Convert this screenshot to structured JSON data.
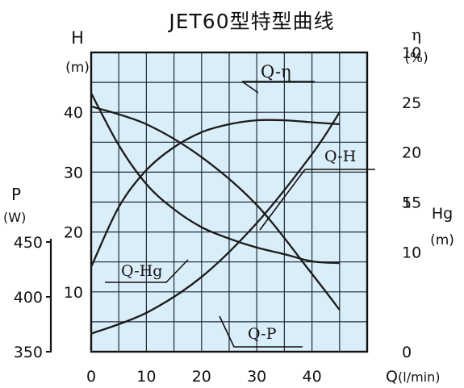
{
  "chart_data": {
    "type": "line",
    "title": "JET60型特型曲线",
    "x": {
      "label": "Q",
      "unit": "(l/min)",
      "range": [
        0,
        50
      ],
      "ticks": [
        "0",
        "10",
        "20",
        "30",
        "40"
      ]
    },
    "axes": {
      "H": {
        "label": "H",
        "unit": "(m)",
        "range": [
          0,
          50
        ],
        "ticks": [
          "10",
          "20",
          "30",
          "40"
        ]
      },
      "eta": {
        "label": "η",
        "unit": "(%)",
        "range": [
          0,
          30
        ],
        "ticks": [
          "10",
          "15",
          "20",
          "25"
        ]
      },
      "Hg": {
        "label": "Hg",
        "unit": "(m)",
        "range": [
          0,
          10
        ],
        "ticks": [
          "0",
          "5",
          "10"
        ]
      },
      "P": {
        "label": "P",
        "unit": "(W)",
        "range": [
          350,
          450
        ],
        "ticks": [
          "350",
          "400",
          "450"
        ]
      }
    },
    "grid": true,
    "series": [
      {
        "name": "Q-η",
        "axis": "eta",
        "color": "#1a1a1a",
        "x": [
          0,
          5,
          10,
          15,
          20,
          25,
          30,
          35,
          40,
          45
        ],
        "y": [
          8.5,
          14.5,
          18.2,
          20.5,
          22.0,
          22.8,
          23.2,
          23.2,
          23.0,
          22.8
        ]
      },
      {
        "name": "Q-H",
        "axis": "H",
        "color": "#1a1a1a",
        "x": [
          0,
          5,
          10,
          15,
          20,
          25,
          30,
          35,
          40,
          45
        ],
        "y": [
          43.2,
          34.5,
          28.0,
          23.8,
          20.8,
          18.9,
          17.4,
          16.3,
          15.1,
          14.8
        ]
      },
      {
        "name": "Q-Hg",
        "axis": "Hg",
        "color": "#1a1a1a",
        "x": [
          0,
          10,
          20,
          30,
          40,
          45
        ],
        "y": [
          8.2,
          7.6,
          6.5,
          4.9,
          2.6,
          1.4
        ]
      },
      {
        "name": "Q-P",
        "axis": "P",
        "color": "#1a1a1a",
        "x": [
          0,
          10,
          20,
          30,
          40,
          45
        ],
        "y": [
          356,
          363,
          375,
          393,
          416,
          430
        ]
      }
    ]
  }
}
